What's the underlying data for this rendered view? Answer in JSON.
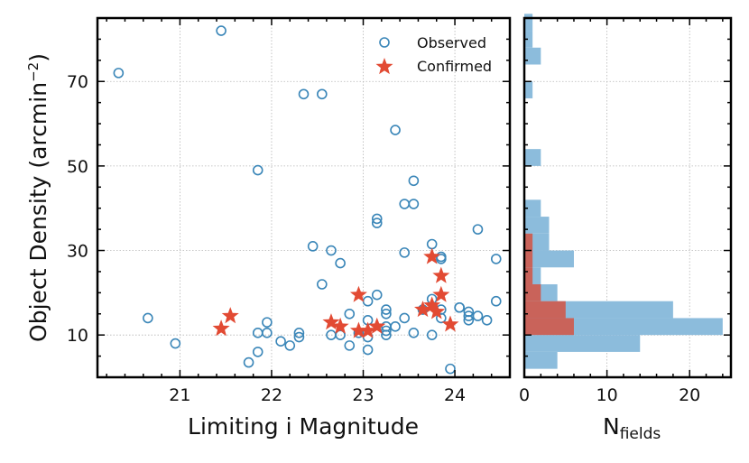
{
  "chart_data": [
    {
      "type": "scatter",
      "xlabel": "Limiting i Magnitude",
      "ylabel": "Object Density (arcmin",
      "ylabel_sup": "−2",
      "ylabel_close": ")",
      "xlim": [
        20.1,
        24.6
      ],
      "ylim": [
        0,
        85
      ],
      "xticks": [
        21,
        22,
        23,
        24
      ],
      "yticks": [
        10,
        30,
        50,
        70
      ],
      "xtick_labels": [
        "21",
        "22",
        "23",
        "24"
      ],
      "ytick_labels": [
        "10",
        "30",
        "50",
        "70"
      ],
      "grid": true,
      "legend_position": "top-right",
      "legend": [
        "Observed",
        "Confirmed"
      ],
      "series": [
        {
          "name": "Observed",
          "marker": "open-circle",
          "color": "#3a86b8",
          "points": [
            [
              20.33,
              72
            ],
            [
              21.45,
              82
            ],
            [
              20.65,
              14
            ],
            [
              20.95,
              8
            ],
            [
              21.75,
              3.5
            ],
            [
              21.85,
              6
            ],
            [
              21.85,
              10.5
            ],
            [
              21.85,
              49
            ],
            [
              21.95,
              13
            ],
            [
              21.95,
              10.5
            ],
            [
              22.1,
              8.5
            ],
            [
              22.2,
              7.5
            ],
            [
              22.3,
              9.5
            ],
            [
              22.3,
              10.5
            ],
            [
              22.35,
              67
            ],
            [
              22.45,
              31
            ],
            [
              22.55,
              67
            ],
            [
              22.55,
              22
            ],
            [
              22.65,
              30
            ],
            [
              22.65,
              10
            ],
            [
              22.75,
              27
            ],
            [
              22.75,
              10
            ],
            [
              22.85,
              7.5
            ],
            [
              22.85,
              15
            ],
            [
              22.95,
              10.5
            ],
            [
              23.05,
              6.5
            ],
            [
              23.05,
              9.5
            ],
            [
              23.05,
              13.5
            ],
            [
              23.05,
              18
            ],
            [
              23.15,
              19.5
            ],
            [
              23.15,
              36.5
            ],
            [
              23.15,
              37.5
            ],
            [
              23.25,
              10
            ],
            [
              23.25,
              11
            ],
            [
              23.25,
              12
            ],
            [
              23.25,
              15
            ],
            [
              23.25,
              16
            ],
            [
              23.35,
              58.5
            ],
            [
              23.35,
              12
            ],
            [
              23.45,
              14
            ],
            [
              23.45,
              29.5
            ],
            [
              23.45,
              41
            ],
            [
              23.55,
              41
            ],
            [
              23.55,
              46.5
            ],
            [
              23.55,
              10.5
            ],
            [
              23.65,
              16
            ],
            [
              23.75,
              31.5
            ],
            [
              23.75,
              10
            ],
            [
              23.75,
              18.5
            ],
            [
              23.85,
              28
            ],
            [
              23.85,
              28.5
            ],
            [
              23.85,
              16
            ],
            [
              23.85,
              14
            ],
            [
              23.95,
              2
            ],
            [
              24.05,
              16.5
            ],
            [
              24.05,
              16.5
            ],
            [
              24.15,
              15.5
            ],
            [
              24.15,
              14.5
            ],
            [
              24.15,
              13.5
            ],
            [
              24.25,
              35
            ],
            [
              24.25,
              14.5
            ],
            [
              24.35,
              13.5
            ],
            [
              24.45,
              18
            ],
            [
              24.45,
              28
            ]
          ]
        },
        {
          "name": "Confirmed",
          "marker": "star",
          "color": "#e24a33",
          "points": [
            [
              21.45,
              11.5
            ],
            [
              21.55,
              14.5
            ],
            [
              22.65,
              13
            ],
            [
              22.75,
              12
            ],
            [
              22.95,
              19.5
            ],
            [
              22.95,
              11
            ],
            [
              23.05,
              11
            ],
            [
              23.15,
              12
            ],
            [
              23.65,
              16
            ],
            [
              23.75,
              28.5
            ],
            [
              23.75,
              17
            ],
            [
              23.8,
              15.5
            ],
            [
              23.85,
              19.5
            ],
            [
              23.85,
              24
            ],
            [
              23.95,
              12.5
            ]
          ]
        }
      ]
    },
    {
      "type": "bar",
      "orientation": "horizontal",
      "xlabel": "N",
      "xlabel_sub": "fields",
      "xlim": [
        0,
        25
      ],
      "ylim": [
        0,
        85
      ],
      "xticks": [
        0,
        10,
        20
      ],
      "xtick_labels": [
        "0",
        "10",
        "20"
      ],
      "bin_edges": [
        2,
        6,
        10,
        14,
        18,
        22,
        26,
        30,
        34,
        38,
        42,
        46,
        50,
        54,
        58,
        62,
        66,
        70,
        74,
        78,
        82,
        86
      ],
      "series": [
        {
          "name": "Observed",
          "color": "#8cbcdc",
          "values": [
            4,
            14,
            24,
            18,
            4,
            2,
            6,
            3,
            3,
            2,
            0,
            0,
            2,
            0,
            0,
            0,
            1,
            0,
            2,
            1,
            1
          ]
        },
        {
          "name": "Confirmed",
          "color": "#c9635a",
          "values": [
            0,
            0,
            6,
            5,
            2,
            1,
            1,
            1,
            0,
            0,
            0,
            0,
            0,
            0,
            0,
            0,
            0,
            0,
            0,
            0,
            0
          ]
        }
      ]
    }
  ]
}
